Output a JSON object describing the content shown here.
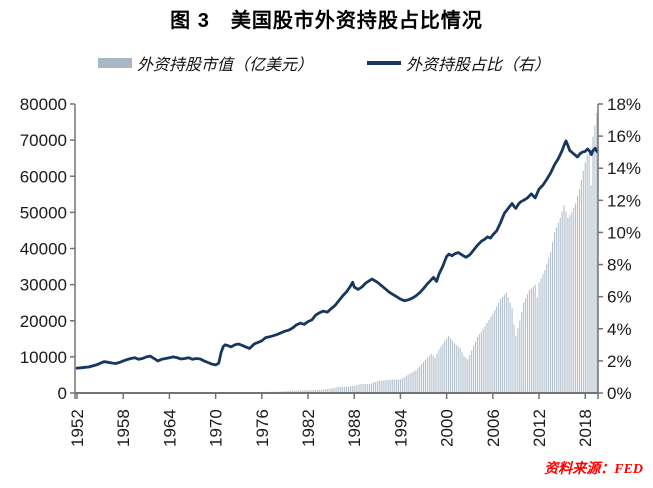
{
  "title": "图 3　美国股市外资持股占比情况",
  "source": "资料来源：FED",
  "legend": {
    "items": [
      {
        "label": "外资持股市值（亿美元）",
        "swatch": "bar"
      },
      {
        "label": "外资持股占比（右）",
        "swatch": "line"
      }
    ]
  },
  "chart_data": {
    "type": "combo-bar-line",
    "title": "图 3　美国股市外资持股占比情况",
    "x_axis": {
      "start": 1952,
      "end": 2019.5,
      "bar_interval": 0.25,
      "tick_years": [
        1952,
        1958,
        1964,
        1970,
        1976,
        1982,
        1988,
        1994,
        2000,
        2006,
        2012,
        2018
      ]
    },
    "y_left": {
      "min": 0,
      "max": 80000,
      "step": 10000
    },
    "y_right": {
      "min": 0,
      "max": 18,
      "step": 2,
      "suffix": "%"
    },
    "grid": false,
    "legend_position": "top",
    "series": [
      {
        "name": "外资持股市值（亿美元）",
        "type": "bar",
        "axis": "left",
        "color": "#b3c0ce",
        "points": [
          [
            1952,
            29
          ],
          [
            1954,
            41
          ],
          [
            1956,
            52
          ],
          [
            1958,
            63
          ],
          [
            1960,
            93
          ],
          [
            1962,
            103
          ],
          [
            1964,
            127
          ],
          [
            1966,
            130
          ],
          [
            1968,
            196
          ],
          [
            1970,
            187
          ],
          [
            1972,
            278
          ],
          [
            1974,
            190
          ],
          [
            1976,
            290
          ],
          [
            1978,
            330
          ],
          [
            1980,
            645
          ],
          [
            1982,
            765
          ],
          [
            1984,
            960
          ],
          [
            1985,
            1255
          ],
          [
            1986,
            1670
          ],
          [
            1987,
            1730
          ],
          [
            1988,
            2010
          ],
          [
            1989,
            2510
          ],
          [
            1990,
            2440
          ],
          [
            1991,
            3290
          ],
          [
            1992,
            3490
          ],
          [
            1993,
            3740
          ],
          [
            1994,
            3720
          ],
          [
            1995,
            5100
          ],
          [
            1996,
            6230
          ],
          [
            1997,
            8610
          ],
          [
            1998,
            10850
          ],
          [
            1998.5,
            9800
          ],
          [
            1999,
            12000
          ],
          [
            1999.75,
            14460
          ],
          [
            2000.25,
            15800
          ],
          [
            2001,
            13800
          ],
          [
            2001.75,
            12400
          ],
          [
            2002.25,
            10200
          ],
          [
            2002.75,
            9300
          ],
          [
            2003.5,
            13000
          ],
          [
            2004,
            15500
          ],
          [
            2005,
            18500
          ],
          [
            2006,
            22000
          ],
          [
            2007,
            26000
          ],
          [
            2007.75,
            27800
          ],
          [
            2008.5,
            23500
          ],
          [
            2008.75,
            19000
          ],
          [
            2009,
            15800
          ],
          [
            2009.5,
            20000
          ],
          [
            2010,
            25000
          ],
          [
            2010.75,
            28500
          ],
          [
            2011.5,
            30000
          ],
          [
            2011.75,
            26500
          ],
          [
            2012,
            30500
          ],
          [
            2012.75,
            34000
          ],
          [
            2013.5,
            39000
          ],
          [
            2014,
            44500
          ],
          [
            2014.75,
            48500
          ],
          [
            2015.25,
            52000
          ],
          [
            2015.75,
            48500
          ],
          [
            2016.25,
            50000
          ],
          [
            2016.75,
            52500
          ],
          [
            2017.25,
            56500
          ],
          [
            2017.75,
            61500
          ],
          [
            2018.25,
            66000
          ],
          [
            2018.5,
            67500
          ],
          [
            2018.75,
            57500
          ],
          [
            2019,
            71000
          ],
          [
            2019.25,
            74000
          ],
          [
            2019.5,
            77500
          ]
        ]
      },
      {
        "name": "外资持股占比（右）",
        "type": "line",
        "axis": "right",
        "color": "#17375e",
        "points": [
          [
            1952,
            1.55
          ],
          [
            1952.5,
            1.57
          ],
          [
            1953,
            1.6
          ],
          [
            1953.5,
            1.62
          ],
          [
            1954,
            1.68
          ],
          [
            1954.5,
            1.75
          ],
          [
            1955,
            1.85
          ],
          [
            1955.5,
            1.95
          ],
          [
            1956,
            1.92
          ],
          [
            1956.5,
            1.87
          ],
          [
            1957,
            1.84
          ],
          [
            1957.5,
            1.9
          ],
          [
            1958,
            2.0
          ],
          [
            1958.5,
            2.08
          ],
          [
            1959,
            2.15
          ],
          [
            1959.5,
            2.2
          ],
          [
            1960,
            2.1
          ],
          [
            1960.5,
            2.15
          ],
          [
            1961,
            2.25
          ],
          [
            1961.5,
            2.3
          ],
          [
            1962,
            2.15
          ],
          [
            1962.5,
            2.0
          ],
          [
            1963,
            2.1
          ],
          [
            1963.5,
            2.15
          ],
          [
            1964,
            2.2
          ],
          [
            1964.5,
            2.25
          ],
          [
            1965,
            2.2
          ],
          [
            1965.5,
            2.12
          ],
          [
            1966,
            2.15
          ],
          [
            1966.5,
            2.2
          ],
          [
            1967,
            2.1
          ],
          [
            1967.5,
            2.15
          ],
          [
            1968,
            2.12
          ],
          [
            1968.5,
            2.0
          ],
          [
            1969,
            1.9
          ],
          [
            1969.5,
            1.8
          ],
          [
            1970,
            1.75
          ],
          [
            1970.4,
            1.85
          ],
          [
            1970.7,
            2.5
          ],
          [
            1971,
            2.9
          ],
          [
            1971.25,
            3.0
          ],
          [
            1971.75,
            2.92
          ],
          [
            1972,
            2.87
          ],
          [
            1972.5,
            3.0
          ],
          [
            1973,
            3.05
          ],
          [
            1973.5,
            2.95
          ],
          [
            1974,
            2.85
          ],
          [
            1974.4,
            2.78
          ],
          [
            1974.8,
            2.95
          ],
          [
            1975,
            3.05
          ],
          [
            1975.5,
            3.15
          ],
          [
            1976,
            3.25
          ],
          [
            1976.5,
            3.45
          ],
          [
            1977,
            3.5
          ],
          [
            1977.5,
            3.57
          ],
          [
            1978,
            3.65
          ],
          [
            1978.5,
            3.75
          ],
          [
            1979,
            3.85
          ],
          [
            1979.5,
            3.92
          ],
          [
            1980,
            4.05
          ],
          [
            1980.5,
            4.25
          ],
          [
            1981,
            4.35
          ],
          [
            1981.5,
            4.28
          ],
          [
            1982,
            4.45
          ],
          [
            1982.5,
            4.55
          ],
          [
            1983,
            4.85
          ],
          [
            1983.5,
            5.0
          ],
          [
            1984,
            5.1
          ],
          [
            1984.5,
            5.03
          ],
          [
            1985,
            5.25
          ],
          [
            1985.5,
            5.45
          ],
          [
            1986,
            5.75
          ],
          [
            1986.5,
            6.05
          ],
          [
            1987,
            6.3
          ],
          [
            1987.5,
            6.65
          ],
          [
            1987.8,
            6.9
          ],
          [
            1988,
            6.6
          ],
          [
            1988.5,
            6.45
          ],
          [
            1989,
            6.6
          ],
          [
            1989.5,
            6.85
          ],
          [
            1990,
            7.0
          ],
          [
            1990.3,
            7.1
          ],
          [
            1991,
            6.9
          ],
          [
            1991.5,
            6.7
          ],
          [
            1992,
            6.5
          ],
          [
            1992.5,
            6.3
          ],
          [
            1993,
            6.15
          ],
          [
            1993.5,
            6.0
          ],
          [
            1994,
            5.85
          ],
          [
            1994.5,
            5.75
          ],
          [
            1995,
            5.8
          ],
          [
            1995.5,
            5.9
          ],
          [
            1996,
            6.05
          ],
          [
            1996.5,
            6.25
          ],
          [
            1997,
            6.5
          ],
          [
            1997.5,
            6.8
          ],
          [
            1998,
            7.05
          ],
          [
            1998.3,
            7.2
          ],
          [
            1998.7,
            6.95
          ],
          [
            1999,
            7.4
          ],
          [
            1999.5,
            7.9
          ],
          [
            2000,
            8.5
          ],
          [
            2000.3,
            8.65
          ],
          [
            2000.7,
            8.55
          ],
          [
            2001,
            8.65
          ],
          [
            2001.5,
            8.75
          ],
          [
            2002,
            8.6
          ],
          [
            2002.5,
            8.45
          ],
          [
            2003,
            8.6
          ],
          [
            2003.5,
            8.9
          ],
          [
            2004,
            9.2
          ],
          [
            2004.5,
            9.45
          ],
          [
            2005,
            9.6
          ],
          [
            2005.3,
            9.72
          ],
          [
            2005.7,
            9.65
          ],
          [
            2006,
            9.85
          ],
          [
            2006.5,
            10.1
          ],
          [
            2007,
            10.6
          ],
          [
            2007.5,
            11.2
          ],
          [
            2008,
            11.5
          ],
          [
            2008.5,
            11.8
          ],
          [
            2008.8,
            11.6
          ],
          [
            2009,
            11.5
          ],
          [
            2009.3,
            11.75
          ],
          [
            2009.6,
            11.9
          ],
          [
            2010,
            12.0
          ],
          [
            2010.5,
            12.15
          ],
          [
            2011,
            12.4
          ],
          [
            2011.5,
            12.15
          ],
          [
            2012,
            12.7
          ],
          [
            2012.5,
            12.95
          ],
          [
            2013,
            13.3
          ],
          [
            2013.5,
            13.7
          ],
          [
            2014,
            14.2
          ],
          [
            2014.5,
            14.6
          ],
          [
            2015,
            15.1
          ],
          [
            2015.3,
            15.5
          ],
          [
            2015.5,
            15.7
          ],
          [
            2015.8,
            15.35
          ],
          [
            2016,
            15.1
          ],
          [
            2016.5,
            14.9
          ],
          [
            2017,
            14.7
          ],
          [
            2017.3,
            14.9
          ],
          [
            2017.6,
            15.0
          ],
          [
            2018,
            15.05
          ],
          [
            2018.3,
            15.2
          ],
          [
            2018.6,
            15.05
          ],
          [
            2018.8,
            14.85
          ],
          [
            2019,
            15.1
          ],
          [
            2019.3,
            15.25
          ],
          [
            2019.5,
            15.05
          ]
        ]
      }
    ]
  }
}
